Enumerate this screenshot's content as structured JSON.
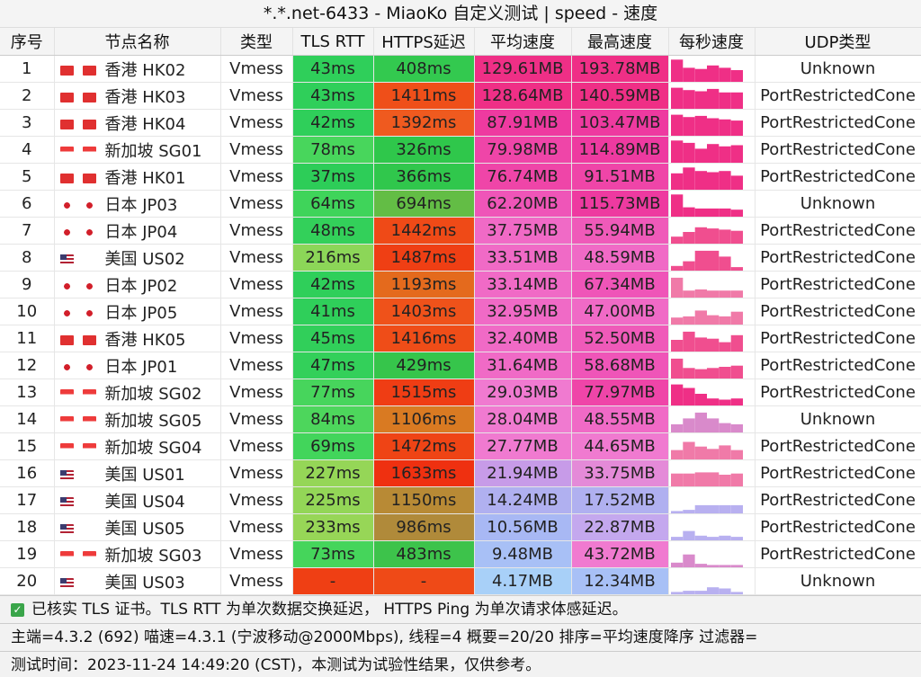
{
  "title": "*.*.net-6433 - MiaoKo 自定义测试 | speed - 速度",
  "headers": [
    "序号",
    "节点名称",
    "类型",
    "TLS RTT",
    "HTTPS延迟",
    "平均速度",
    "最高速度",
    "每秒速度",
    "UDP类型"
  ],
  "rows": [
    {
      "idx": "1",
      "flag": "hk",
      "name": "香港 HK02",
      "type": "Vmess",
      "tls": "43ms",
      "https": "408ms",
      "avg": "129.61MB",
      "max": "193.78MB",
      "udp": "Unknown",
      "tls_color": "#2fcf5a",
      "https_color": "#33c94f",
      "avg_color": "#ef2f86",
      "max_color": "#ef2f86",
      "spark_color": "#ef2f86",
      "spark": [
        0.95,
        0.6,
        0.55,
        0.7,
        0.6,
        0.5
      ]
    },
    {
      "idx": "2",
      "flag": "hk",
      "name": "香港 HK03",
      "type": "Vmess",
      "tls": "43ms",
      "https": "1411ms",
      "avg": "128.64MB",
      "max": "140.59MB",
      "udp": "PortRestrictedCone",
      "tls_color": "#2fcf5a",
      "https_color": "#ef4f19",
      "avg_color": "#ef2f86",
      "max_color": "#ef2f86",
      "spark_color": "#ef2f86",
      "spark": [
        0.9,
        0.8,
        0.75,
        0.85,
        0.7,
        0.7
      ]
    },
    {
      "idx": "3",
      "flag": "hk",
      "name": "香港 HK04",
      "type": "Vmess",
      "tls": "42ms",
      "https": "1392ms",
      "avg": "87.91MB",
      "max": "103.47MB",
      "udp": "PortRestrictedCone",
      "tls_color": "#2fcf5a",
      "https_color": "#ef5a1f",
      "avg_color": "#ee3aa0",
      "max_color": "#ee3aa0",
      "spark_color": "#ef2f86",
      "spark": [
        0.9,
        0.8,
        0.85,
        0.75,
        0.7,
        0.65
      ]
    },
    {
      "idx": "4",
      "flag": "sg",
      "name": "新加坡 SG01",
      "type": "Vmess",
      "tls": "78ms",
      "https": "326ms",
      "avg": "79.98MB",
      "max": "114.89MB",
      "udp": "PortRestrictedCone",
      "tls_color": "#48d65c",
      "https_color": "#2fc74b",
      "avg_color": "#ef45a8",
      "max_color": "#ee3aa0",
      "spark_color": "#ef2f86",
      "spark": [
        0.95,
        0.85,
        0.6,
        0.8,
        0.7,
        0.75
      ]
    },
    {
      "idx": "5",
      "flag": "hk",
      "name": "香港 HK01",
      "type": "Vmess",
      "tls": "37ms",
      "https": "366ms",
      "avg": "76.74MB",
      "max": "91.51MB",
      "udp": "PortRestrictedCone",
      "tls_color": "#2dcd58",
      "https_color": "#30c74c",
      "avg_color": "#ef45a8",
      "max_color": "#ef45a8",
      "spark_color": "#ef2f86",
      "spark": [
        0.7,
        0.95,
        0.8,
        0.75,
        0.8,
        0.6
      ]
    },
    {
      "idx": "6",
      "flag": "jp",
      "name": "日本 JP03",
      "type": "Vmess",
      "tls": "64ms",
      "https": "694ms",
      "avg": "62.20MB",
      "max": "115.73MB",
      "udp": "Unknown",
      "tls_color": "#3fd45a",
      "https_color": "#63bd45",
      "avg_color": "#ef55b8",
      "max_color": "#ee3aa0",
      "spark_color": "#ef2f86",
      "spark": [
        0.95,
        0.4,
        0.35,
        0.35,
        0.35,
        0.3
      ]
    },
    {
      "idx": "7",
      "flag": "jp",
      "name": "日本 JP04",
      "type": "Vmess",
      "tls": "48ms",
      "https": "1442ms",
      "avg": "37.75MB",
      "max": "55.94MB",
      "udp": "PortRestrictedCone",
      "tls_color": "#33d05a",
      "https_color": "#ef4a17",
      "avg_color": "#f06ac6",
      "max_color": "#ef5ab9",
      "spark_color": "#f04e8f",
      "spark": [
        0.3,
        0.5,
        0.7,
        0.65,
        0.6,
        0.55
      ]
    },
    {
      "idx": "8",
      "flag": "us",
      "name": "美国 US02",
      "type": "Vmess",
      "tls": "216ms",
      "https": "1487ms",
      "avg": "33.51MB",
      "max": "48.59MB",
      "udp": "PortRestrictedCone",
      "tls_color": "#8cd658",
      "https_color": "#ef3f14",
      "avg_color": "#f06ac6",
      "max_color": "#f06ac6",
      "spark_color": "#f04e8f",
      "spark": [
        0.2,
        0.4,
        0.85,
        0.85,
        0.6,
        0.15
      ]
    },
    {
      "idx": "9",
      "flag": "jp",
      "name": "日本 JP02",
      "type": "Vmess",
      "tls": "42ms",
      "https": "1193ms",
      "avg": "33.14MB",
      "max": "67.34MB",
      "udp": "PortRestrictedCone",
      "tls_color": "#2fcf5a",
      "https_color": "#e46a1d",
      "avg_color": "#f06ac6",
      "max_color": "#ef55b8",
      "spark_color": "#f07aa8",
      "spark": [
        0.85,
        0.3,
        0.35,
        0.3,
        0.3,
        0.3
      ]
    },
    {
      "idx": "10",
      "flag": "jp",
      "name": "日本 JP05",
      "type": "Vmess",
      "tls": "41ms",
      "https": "1403ms",
      "avg": "32.95MB",
      "max": "47.00MB",
      "udp": "PortRestrictedCone",
      "tls_color": "#2fcf5a",
      "https_color": "#ef521a",
      "avg_color": "#f06ac6",
      "max_color": "#f06ac6",
      "spark_color": "#f07aa8",
      "spark": [
        0.3,
        0.35,
        0.6,
        0.4,
        0.35,
        0.55
      ]
    },
    {
      "idx": "11",
      "flag": "hk",
      "name": "香港 HK05",
      "type": "Vmess",
      "tls": "45ms",
      "https": "1416ms",
      "avg": "32.40MB",
      "max": "52.50MB",
      "udp": "PortRestrictedCone",
      "tls_color": "#31cf5a",
      "https_color": "#ef4d18",
      "avg_color": "#f06ac6",
      "max_color": "#ef5ab9",
      "spark_color": "#f04e8f",
      "spark": [
        0.5,
        0.85,
        0.6,
        0.55,
        0.4,
        0.7
      ]
    },
    {
      "idx": "12",
      "flag": "jp",
      "name": "日本 JP01",
      "type": "Vmess",
      "tls": "47ms",
      "https": "429ms",
      "avg": "31.64MB",
      "max": "58.68MB",
      "udp": "PortRestrictedCone",
      "tls_color": "#33d05a",
      "https_color": "#36c54b",
      "avg_color": "#f06ac6",
      "max_color": "#ef55b8",
      "spark_color": "#f04e8f",
      "spark": [
        0.85,
        0.45,
        0.4,
        0.45,
        0.5,
        0.55
      ]
    },
    {
      "idx": "13",
      "flag": "sg",
      "name": "新加坡 SG02",
      "type": "Vmess",
      "tls": "77ms",
      "https": "1515ms",
      "avg": "29.03MB",
      "max": "77.97MB",
      "udp": "PortRestrictedCone",
      "tls_color": "#47d55c",
      "https_color": "#ef3d14",
      "avg_color": "#f07ad0",
      "max_color": "#ef45a8",
      "spark_color": "#ef2f86",
      "spark": [
        0.9,
        0.75,
        0.5,
        0.3,
        0.25,
        0.3
      ]
    },
    {
      "idx": "14",
      "flag": "sg",
      "name": "新加坡 SG05",
      "type": "Vmess",
      "tls": "84ms",
      "https": "1106ms",
      "avg": "28.04MB",
      "max": "48.55MB",
      "udp": "Unknown",
      "tls_color": "#4dd65c",
      "https_color": "#d97a22",
      "avg_color": "#f07ad0",
      "max_color": "#f06ac6",
      "spark_color": "#d98acb",
      "spark": [
        0.35,
        0.6,
        0.85,
        0.6,
        0.4,
        0.35
      ]
    },
    {
      "idx": "15",
      "flag": "sg",
      "name": "新加坡 SG04",
      "type": "Vmess",
      "tls": "69ms",
      "https": "1472ms",
      "avg": "27.77MB",
      "max": "44.65MB",
      "udp": "PortRestrictedCone",
      "tls_color": "#42d55b",
      "https_color": "#ef4415",
      "avg_color": "#f07ad0",
      "max_color": "#f07ad0",
      "spark_color": "#f07aa8",
      "spark": [
        0.4,
        0.75,
        0.55,
        0.45,
        0.6,
        0.4
      ]
    },
    {
      "idx": "16",
      "flag": "us",
      "name": "美国 US01",
      "type": "Vmess",
      "tls": "227ms",
      "https": "1633ms",
      "avg": "21.94MB",
      "max": "33.75MB",
      "udp": "PortRestrictedCone",
      "tls_color": "#95d657",
      "https_color": "#ef3010",
      "avg_color": "#c79be8",
      "max_color": "#e48ad8",
      "spark_color": "#f07aa8",
      "spark": [
        0.55,
        0.55,
        0.6,
        0.6,
        0.5,
        0.55
      ]
    },
    {
      "idx": "17",
      "flag": "us",
      "name": "美国 US04",
      "type": "Vmess",
      "tls": "225ms",
      "https": "1150ms",
      "avg": "14.24MB",
      "max": "17.52MB",
      "udp": "PortRestrictedCone",
      "tls_color": "#93d657",
      "https_color": "#b88a35",
      "avg_color": "#b0b0f0",
      "max_color": "#b0b0f0",
      "spark_color": "#b8b0f0",
      "spark": [
        0.1,
        0.15,
        0.35,
        0.35,
        0.35,
        0.35
      ]
    },
    {
      "idx": "18",
      "flag": "us",
      "name": "美国 US05",
      "type": "Vmess",
      "tls": "233ms",
      "https": "986ms",
      "avg": "10.56MB",
      "max": "22.87MB",
      "udp": "PortRestrictedCone",
      "tls_color": "#97d657",
      "https_color": "#b08a3a",
      "avg_color": "#a8b8f4",
      "max_color": "#c4a8ee",
      "spark_color": "#b8b0f0",
      "spark": [
        0.15,
        0.4,
        0.2,
        0.15,
        0.2,
        0.15
      ]
    },
    {
      "idx": "19",
      "flag": "sg",
      "name": "新加坡 SG03",
      "type": "Vmess",
      "tls": "73ms",
      "https": "483ms",
      "avg": "9.48MB",
      "max": "43.72MB",
      "udp": "PortRestrictedCone",
      "tls_color": "#45d55b",
      "https_color": "#3dc34b",
      "avg_color": "#a8c0f6",
      "max_color": "#f07ad0",
      "spark_color": "#d98acb",
      "spark": [
        0.2,
        0.55,
        0.15,
        0.1,
        0.1,
        0.1
      ]
    },
    {
      "idx": "20",
      "flag": "us",
      "name": "美国 US03",
      "type": "Vmess",
      "tls": "-",
      "https": "-",
      "avg": "4.17MB",
      "max": "12.34MB",
      "udp": "Unknown",
      "tls_color": "#ef3f14",
      "https_color": "#ef4a17",
      "avg_color": "#a8d0f8",
      "max_color": "#a8c0f6",
      "spark_color": "#b8b0f0",
      "spark": [
        0.1,
        0.15,
        0.15,
        0.3,
        0.25,
        0.1
      ]
    }
  ],
  "footer": {
    "note": "已核实 TLS 证书。TLS RTT 为单次数据交换延迟， HTTPS Ping 为单次请求体感延迟。",
    "info": "主端=4.3.2 (692) 喵速=4.3.1 (宁波移动@2000Mbps), 线程=4 概要=20/20 排序=平均速度降序 过滤器=",
    "time": "测试时间：2023-11-24 14:49:20 (CST)，本测试为试验性结果，仅供参考。"
  }
}
